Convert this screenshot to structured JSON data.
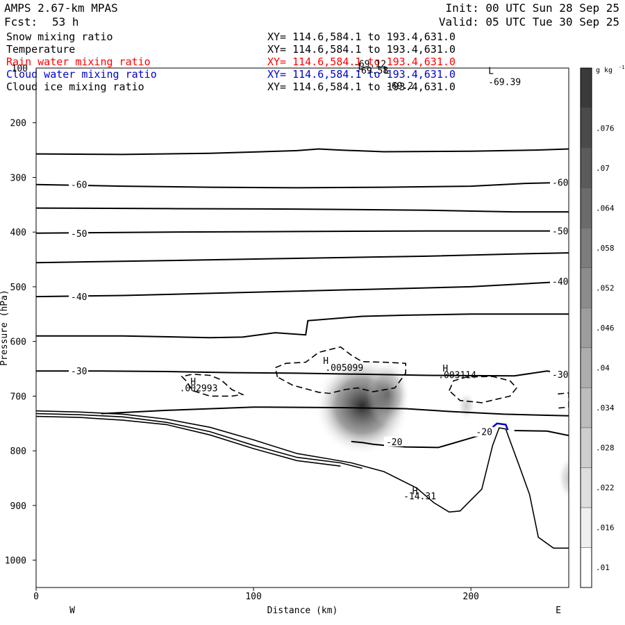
{
  "header": {
    "model": "AMPS 2.67-km MPAS",
    "fcst_label": "Fcst:",
    "fcst_value": "53 h",
    "init": "Init: 00 UTC Sun 28 Sep 25",
    "valid": "Valid: 05 UTC Tue 30 Sep 25"
  },
  "fields": [
    {
      "name": "Snow mixing ratio",
      "xy": "XY= 114.6,584.1 to 193.4,631.0",
      "color": "#000000"
    },
    {
      "name": "Temperature",
      "xy": "XY= 114.6,584.1 to 193.4,631.0",
      "color": "#000000"
    },
    {
      "name": "Rain water mixing ratio",
      "xy": "XY= 114.6,584.1 to 193.4,631.0",
      "color": "#ff0000"
    },
    {
      "name": "Cloud water mixing ratio",
      "xy": "XY= 114.6,584.1 to 193.4,631.0",
      "color": "#0000cc"
    },
    {
      "name": "Cloud ice mixing ratio",
      "xy": "XY= 114.6,584.1 to 193.4,631.0",
      "color": "#000000"
    }
  ],
  "chart_data": {
    "type": "contour cross-section",
    "xlabel": "Distance (km)",
    "ylabel": "Pressure (hPa)",
    "x_ticks": [
      0,
      100,
      200
    ],
    "xlim": [
      0,
      245
    ],
    "y_ticks": [
      200,
      300,
      400,
      500,
      600,
      700,
      800,
      900,
      1000
    ],
    "y_top_label": "100",
    "ylim": [
      100,
      1050
    ],
    "left_end": "W",
    "right_end": "E",
    "colorbar": {
      "unit": "g kg",
      "unit_exp": "-1",
      "ticks": [
        ".01",
        ".016",
        ".022",
        ".028",
        ".034",
        ".04",
        ".046",
        ".052",
        ".058",
        ".064",
        ".07",
        ".076"
      ]
    },
    "temperature_contours": [
      {
        "level": "-60",
        "points": [
          [
            0,
            313
          ],
          [
            40,
            316
          ],
          [
            80,
            318
          ],
          [
            120,
            319
          ],
          [
            160,
            318
          ],
          [
            200,
            316
          ],
          [
            225,
            311
          ],
          [
            245,
            309
          ]
        ]
      },
      {
        "level": "",
        "points": [
          [
            0,
            257
          ],
          [
            40,
            258
          ],
          [
            80,
            256
          ],
          [
            120,
            251
          ],
          [
            130,
            248
          ],
          [
            140,
            250
          ],
          [
            160,
            253
          ],
          [
            200,
            252
          ],
          [
            230,
            250
          ],
          [
            245,
            248
          ]
        ]
      },
      {
        "level": "",
        "points": [
          [
            0,
            356
          ],
          [
            60,
            357
          ],
          [
            120,
            358
          ],
          [
            180,
            360
          ],
          [
            220,
            363
          ],
          [
            245,
            363
          ]
        ]
      },
      {
        "level": "-50",
        "points": [
          [
            0,
            402
          ],
          [
            60,
            400
          ],
          [
            120,
            399
          ],
          [
            180,
            398
          ],
          [
            220,
            398
          ],
          [
            245,
            398
          ]
        ]
      },
      {
        "level": "",
        "points": [
          [
            0,
            456
          ],
          [
            60,
            452
          ],
          [
            120,
            448
          ],
          [
            180,
            444
          ],
          [
            220,
            440
          ],
          [
            245,
            438
          ]
        ]
      },
      {
        "level": "-40",
        "points": [
          [
            0,
            518
          ],
          [
            40,
            516
          ],
          [
            80,
            512
          ],
          [
            120,
            508
          ],
          [
            160,
            504
          ],
          [
            200,
            500
          ],
          [
            245,
            490
          ]
        ]
      },
      {
        "level": "",
        "points": [
          [
            0,
            590
          ],
          [
            40,
            590
          ],
          [
            80,
            593
          ],
          [
            95,
            592
          ],
          [
            110,
            584
          ],
          [
            124,
            588
          ],
          [
            125,
            562
          ],
          [
            150,
            554
          ],
          [
            170,
            552
          ],
          [
            200,
            550
          ],
          [
            245,
            550
          ]
        ]
      },
      {
        "level": "-30",
        "points": [
          [
            0,
            654
          ],
          [
            30,
            654
          ],
          [
            60,
            655
          ],
          [
            90,
            657
          ],
          [
            120,
            658
          ],
          [
            150,
            660
          ],
          [
            180,
            662
          ],
          [
            220,
            663
          ],
          [
            235,
            654
          ],
          [
            245,
            660
          ]
        ]
      },
      {
        "level": "",
        "points": [
          [
            30,
            732
          ],
          [
            60,
            726
          ],
          [
            100,
            720
          ],
          [
            140,
            721
          ],
          [
            170,
            723
          ],
          [
            190,
            728
          ],
          [
            215,
            733
          ],
          [
            245,
            736
          ]
        ]
      },
      {
        "level": "-20",
        "points": [
          [
            145,
            783
          ],
          [
            150,
            785
          ],
          [
            155,
            788
          ],
          [
            160,
            790
          ],
          [
            170,
            793
          ],
          [
            185,
            794
          ],
          [
            198,
            779
          ],
          [
            210,
            765
          ]
        ]
      },
      {
        "level": "",
        "points": [
          [
            220,
            763
          ],
          [
            235,
            764
          ],
          [
            245,
            772
          ]
        ]
      }
    ],
    "terrain_lines": [
      [
        [
          0,
          727
        ],
        [
          20,
          729
        ],
        [
          40,
          733
        ],
        [
          60,
          742
        ],
        [
          80,
          757
        ],
        [
          100,
          780
        ],
        [
          120,
          805
        ],
        [
          135,
          815
        ],
        [
          145,
          822
        ],
        [
          160,
          838
        ],
        [
          175,
          868
        ],
        [
          183,
          895
        ],
        [
          190,
          912
        ],
        [
          195,
          910
        ],
        [
          205,
          870
        ],
        [
          210,
          790
        ],
        [
          213,
          758
        ],
        [
          216,
          760
        ],
        [
          222,
          825
        ],
        [
          227,
          880
        ],
        [
          231,
          958
        ],
        [
          238,
          978
        ],
        [
          245,
          978
        ]
      ],
      [
        [
          0,
          732
        ],
        [
          20,
          734
        ],
        [
          40,
          738
        ],
        [
          60,
          748
        ],
        [
          80,
          765
        ],
        [
          100,
          790
        ],
        [
          120,
          812
        ],
        [
          140,
          822
        ],
        [
          150,
          832
        ]
      ],
      [
        [
          0,
          737
        ],
        [
          20,
          739
        ],
        [
          40,
          744
        ],
        [
          60,
          752
        ],
        [
          80,
          771
        ],
        [
          100,
          796
        ],
        [
          120,
          818
        ],
        [
          140,
          828
        ]
      ]
    ],
    "snow_contours": [
      {
        "label": "",
        "points": [
          [
            111,
            665
          ],
          [
            110,
            648
          ],
          [
            115,
            640
          ],
          [
            124,
            638
          ],
          [
            130,
            620
          ],
          [
            140,
            610
          ],
          [
            145,
            625
          ],
          [
            150,
            637
          ],
          [
            160,
            638
          ],
          [
            170,
            640
          ],
          [
            170,
            658
          ],
          [
            165,
            685
          ],
          [
            155,
            692
          ],
          [
            148,
            685
          ],
          [
            142,
            688
          ],
          [
            135,
            695
          ],
          [
            130,
            693
          ],
          [
            118,
            680
          ],
          [
            111,
            665
          ]
        ]
      },
      {
        "label": "",
        "points": [
          [
            69,
            672
          ],
          [
            67,
            664
          ],
          [
            72,
            660
          ],
          [
            80,
            662
          ],
          [
            85,
            670
          ],
          [
            90,
            688
          ],
          [
            95,
            697
          ],
          [
            90,
            700
          ],
          [
            80,
            700
          ],
          [
            72,
            690
          ],
          [
            69,
            672
          ]
        ]
      },
      {
        "label": "",
        "points": [
          [
            190,
            690
          ],
          [
            192,
            672
          ],
          [
            198,
            665
          ],
          [
            210,
            664
          ],
          [
            218,
            672
          ],
          [
            221,
            685
          ],
          [
            218,
            700
          ],
          [
            205,
            712
          ],
          [
            195,
            708
          ],
          [
            190,
            690
          ]
        ]
      },
      {
        "label": "",
        "points": [
          [
            240,
            696
          ],
          [
            245,
            694
          ],
          [
            245,
            720
          ],
          [
            240,
            722
          ]
        ]
      }
    ],
    "cloud_water_contour": [
      [
        209,
        760
      ],
      [
        212,
        750
      ],
      [
        216,
        752
      ],
      [
        217,
        762
      ]
    ],
    "shading_blobs": [
      {
        "cx": 150,
        "cy": 718,
        "rx": 22,
        "ry": 90,
        "value": 0.076
      },
      {
        "cx": 162,
        "cy": 695,
        "rx": 10,
        "ry": 60,
        "value": 0.04
      },
      {
        "cx": 198,
        "cy": 718,
        "rx": 4,
        "ry": 25,
        "value": 0.016
      },
      {
        "cx": 245,
        "cy": 850,
        "rx": 5,
        "ry": 40,
        "value": 0.02
      }
    ],
    "annotations": [
      {
        "x": 146,
        "y": 98,
        "text": "-69.12"
      },
      {
        "x": 161,
        "y": 138,
        "text": "-69.2"
      },
      {
        "x": 160,
        "y": 110,
        "text": "L"
      },
      {
        "x": 147,
        "y": 110,
        "text": "-69.58"
      },
      {
        "x": 148,
        "y": 103,
        "text": "L"
      },
      {
        "x": 208,
        "y": 111,
        "text": "L"
      },
      {
        "x": 208,
        "y": 131,
        "text": "-69.39"
      },
      {
        "x": 71,
        "y": 679,
        "text": "H"
      },
      {
        "x": 66,
        "y": 691,
        "text": ".002993"
      },
      {
        "x": 132,
        "y": 641,
        "text": "H"
      },
      {
        "x": 133,
        "y": 654,
        "text": ".005099"
      },
      {
        "x": 187,
        "y": 655,
        "text": "H"
      },
      {
        "x": 185,
        "y": 667,
        "text": ".003114"
      },
      {
        "x": 173,
        "y": 879,
        "text": "H"
      },
      {
        "x": 169,
        "y": 889,
        "text": "-14.31"
      }
    ]
  }
}
